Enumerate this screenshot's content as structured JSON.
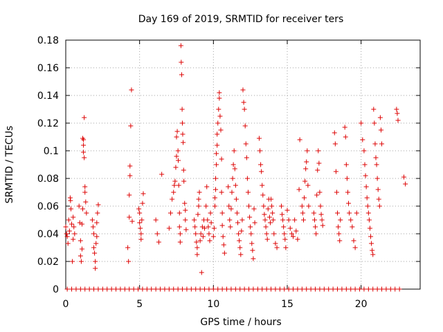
{
  "chart_data": {
    "type": "scatter",
    "title": "Day 169 of 2019, SRMTID for receiver ters",
    "xlabel": "GPS time / hours",
    "ylabel": "SRMTID / TECUs",
    "xlim": [
      0,
      24
    ],
    "ylim": [
      0,
      0.18
    ],
    "xticks": [
      0,
      5,
      10,
      15,
      20
    ],
    "xtick_labels": [
      "0",
      "5",
      "10",
      "15",
      "20"
    ],
    "yticks": [
      0,
      0.02,
      0.04,
      0.06,
      0.08,
      0.1,
      0.12,
      0.14,
      0.16,
      0.18
    ],
    "ytick_labels": [
      "0",
      "0.02",
      "0.04",
      "0.06",
      "0.08",
      "0.1",
      "0.12",
      "0.14",
      "0.16",
      "0.18"
    ],
    "grid": true,
    "marker": "+",
    "color": "#dd0000",
    "series": [
      {
        "name": "SRMTID",
        "points": [
          [
            0.0,
            0.045
          ],
          [
            0.05,
            0.04
          ],
          [
            0.1,
            0.038
          ],
          [
            0.15,
            0.033
          ],
          [
            0.2,
            0.05
          ],
          [
            0.25,
            0.042
          ],
          [
            0.3,
            0.066
          ],
          [
            0.32,
            0.064
          ],
          [
            0.35,
            0.058
          ],
          [
            0.4,
            0.047
          ],
          [
            0.45,
            0.02
          ],
          [
            0.5,
            0.052
          ],
          [
            0.5,
            0.036
          ],
          [
            0.55,
            0.045
          ],
          [
            0.6,
            0.04
          ],
          [
            0.9,
            0.06
          ],
          [
            0.95,
            0.048
          ],
          [
            1.0,
            0.035
          ],
          [
            1.0,
            0.024
          ],
          [
            1.05,
            0.02
          ],
          [
            1.1,
            0.029
          ],
          [
            1.1,
            0.047
          ],
          [
            1.15,
            0.058
          ],
          [
            1.15,
            0.109
          ],
          [
            1.2,
            0.108
          ],
          [
            1.2,
            0.104
          ],
          [
            1.2,
            0.099
          ],
          [
            1.25,
            0.095
          ],
          [
            1.25,
            0.124
          ],
          [
            1.3,
            0.074
          ],
          [
            1.3,
            0.07
          ],
          [
            1.35,
            0.063
          ],
          [
            1.4,
            0.055
          ],
          [
            1.8,
            0.05
          ],
          [
            1.85,
            0.045
          ],
          [
            1.9,
            0.04
          ],
          [
            1.9,
            0.03
          ],
          [
            1.95,
            0.026
          ],
          [
            2.0,
            0.02
          ],
          [
            2.0,
            0.015
          ],
          [
            2.05,
            0.033
          ],
          [
            2.1,
            0.038
          ],
          [
            2.1,
            0.048
          ],
          [
            2.15,
            0.055
          ],
          [
            2.2,
            0.061
          ],
          [
            4.2,
            0.03
          ],
          [
            4.25,
            0.02
          ],
          [
            4.3,
            0.052
          ],
          [
            4.3,
            0.068
          ],
          [
            4.35,
            0.082
          ],
          [
            4.35,
            0.089
          ],
          [
            4.4,
            0.118
          ],
          [
            4.45,
            0.144
          ],
          [
            4.5,
            0.049
          ],
          [
            4.95,
            0.058
          ],
          [
            5.0,
            0.055
          ],
          [
            5.0,
            0.048
          ],
          [
            5.05,
            0.044
          ],
          [
            5.1,
            0.04
          ],
          [
            5.1,
            0.036
          ],
          [
            5.15,
            0.05
          ],
          [
            5.2,
            0.062
          ],
          [
            5.25,
            0.069
          ],
          [
            6.1,
            0.05
          ],
          [
            6.2,
            0.04
          ],
          [
            6.3,
            0.034
          ],
          [
            6.5,
            0.083
          ],
          [
            7.0,
            0.044
          ],
          [
            7.1,
            0.055
          ],
          [
            7.2,
            0.065
          ],
          [
            7.3,
            0.07
          ],
          [
            7.35,
            0.075
          ],
          [
            7.4,
            0.078
          ],
          [
            7.45,
            0.088
          ],
          [
            7.5,
            0.11
          ],
          [
            7.5,
            0.096
          ],
          [
            7.55,
            0.114
          ],
          [
            7.6,
            0.1
          ],
          [
            7.62,
            0.093
          ],
          [
            7.65,
            0.075
          ],
          [
            7.7,
            0.055
          ],
          [
            7.7,
            0.045
          ],
          [
            7.75,
            0.04
          ],
          [
            7.75,
            0.034
          ],
          [
            7.8,
            0.176
          ],
          [
            7.82,
            0.164
          ],
          [
            7.85,
            0.155
          ],
          [
            7.88,
            0.13
          ],
          [
            7.9,
            0.12
          ],
          [
            7.92,
            0.112
          ],
          [
            7.95,
            0.106
          ],
          [
            7.98,
            0.086
          ],
          [
            8.0,
            0.078
          ],
          [
            8.05,
            0.062
          ],
          [
            8.1,
            0.057
          ],
          [
            8.1,
            0.05
          ],
          [
            8.15,
            0.043
          ],
          [
            8.7,
            0.05
          ],
          [
            8.75,
            0.045
          ],
          [
            8.8,
            0.04
          ],
          [
            8.85,
            0.034
          ],
          [
            8.9,
            0.03
          ],
          [
            8.9,
            0.025
          ],
          [
            8.95,
            0.054
          ],
          [
            9.0,
            0.06
          ],
          [
            9.0,
            0.065
          ],
          [
            9.05,
            0.07
          ],
          [
            9.1,
            0.035
          ],
          [
            9.15,
            0.04
          ],
          [
            9.2,
            0.012
          ],
          [
            9.25,
            0.045
          ],
          [
            9.3,
            0.038
          ],
          [
            9.35,
            0.05
          ],
          [
            9.4,
            0.044
          ],
          [
            9.5,
            0.06
          ],
          [
            9.55,
            0.074
          ],
          [
            9.6,
            0.05
          ],
          [
            9.65,
            0.045
          ],
          [
            9.7,
            0.04
          ],
          [
            9.75,
            0.035
          ],
          [
            9.8,
            0.055
          ],
          [
            9.85,
            0.048
          ],
          [
            10.0,
            0.038
          ],
          [
            10.05,
            0.044
          ],
          [
            10.1,
            0.06
          ],
          [
            10.1,
            0.066
          ],
          [
            10.15,
            0.072
          ],
          [
            10.15,
            0.08
          ],
          [
            10.2,
            0.09
          ],
          [
            10.2,
            0.098
          ],
          [
            10.25,
            0.104
          ],
          [
            10.25,
            0.112
          ],
          [
            10.3,
            0.12
          ],
          [
            10.35,
            0.13
          ],
          [
            10.4,
            0.142
          ],
          [
            10.4,
            0.138
          ],
          [
            10.45,
            0.125
          ],
          [
            10.5,
            0.115
          ],
          [
            10.55,
            0.094
          ],
          [
            10.55,
            0.07
          ],
          [
            10.6,
            0.055
          ],
          [
            10.6,
            0.046
          ],
          [
            10.65,
            0.038
          ],
          [
            10.7,
            0.032
          ],
          [
            10.75,
            0.026
          ],
          [
            11.0,
            0.074
          ],
          [
            11.05,
            0.06
          ],
          [
            11.1,
            0.05
          ],
          [
            11.15,
            0.045
          ],
          [
            11.2,
            0.058
          ],
          [
            11.25,
            0.07
          ],
          [
            11.3,
            0.08
          ],
          [
            11.35,
            0.09
          ],
          [
            11.4,
            0.1
          ],
          [
            11.45,
            0.087
          ],
          [
            11.5,
            0.075
          ],
          [
            11.55,
            0.065
          ],
          [
            11.6,
            0.055
          ],
          [
            11.65,
            0.048
          ],
          [
            11.7,
            0.04
          ],
          [
            11.75,
            0.035
          ],
          [
            11.8,
            0.03
          ],
          [
            11.85,
            0.025
          ],
          [
            11.9,
            0.042
          ],
          [
            11.95,
            0.05
          ],
          [
            12.0,
            0.144
          ],
          [
            12.05,
            0.135
          ],
          [
            12.1,
            0.13
          ],
          [
            12.15,
            0.118
          ],
          [
            12.2,
            0.105
          ],
          [
            12.25,
            0.095
          ],
          [
            12.3,
            0.08
          ],
          [
            12.35,
            0.07
          ],
          [
            12.4,
            0.06
          ],
          [
            12.45,
            0.052
          ],
          [
            12.5,
            0.045
          ],
          [
            12.55,
            0.04
          ],
          [
            12.6,
            0.033
          ],
          [
            12.65,
            0.028
          ],
          [
            12.7,
            0.022
          ],
          [
            12.75,
            0.058
          ],
          [
            12.8,
            0.048
          ],
          [
            13.1,
            0.109
          ],
          [
            13.15,
            0.1
          ],
          [
            13.2,
            0.09
          ],
          [
            13.25,
            0.085
          ],
          [
            13.3,
            0.075
          ],
          [
            13.35,
            0.068
          ],
          [
            13.4,
            0.06
          ],
          [
            13.45,
            0.054
          ],
          [
            13.5,
            0.05
          ],
          [
            13.55,
            0.045
          ],
          [
            13.6,
            0.04
          ],
          [
            13.65,
            0.036
          ],
          [
            13.7,
            0.058
          ],
          [
            13.75,
            0.065
          ],
          [
            13.8,
            0.052
          ],
          [
            13.85,
            0.048
          ],
          [
            13.9,
            0.065
          ],
          [
            13.95,
            0.06
          ],
          [
            14.0,
            0.055
          ],
          [
            14.05,
            0.05
          ],
          [
            14.1,
            0.04
          ],
          [
            14.2,
            0.033
          ],
          [
            14.3,
            0.03
          ],
          [
            14.6,
            0.06
          ],
          [
            14.65,
            0.054
          ],
          [
            14.7,
            0.05
          ],
          [
            14.75,
            0.045
          ],
          [
            14.8,
            0.04
          ],
          [
            14.85,
            0.036
          ],
          [
            14.9,
            0.03
          ],
          [
            15.0,
            0.057
          ],
          [
            15.1,
            0.05
          ],
          [
            15.2,
            0.044
          ],
          [
            15.3,
            0.04
          ],
          [
            15.4,
            0.038
          ],
          [
            15.5,
            0.05
          ],
          [
            15.6,
            0.042
          ],
          [
            15.7,
            0.036
          ],
          [
            15.8,
            0.072
          ],
          [
            15.85,
            0.108
          ],
          [
            16.0,
            0.06
          ],
          [
            16.05,
            0.055
          ],
          [
            16.1,
            0.05
          ],
          [
            16.15,
            0.066
          ],
          [
            16.2,
            0.078
          ],
          [
            16.25,
            0.087
          ],
          [
            16.3,
            0.092
          ],
          [
            16.35,
            0.1
          ],
          [
            16.4,
            0.075
          ],
          [
            16.45,
            0.06
          ],
          [
            16.8,
            0.055
          ],
          [
            16.85,
            0.05
          ],
          [
            16.9,
            0.045
          ],
          [
            16.95,
            0.04
          ],
          [
            17.0,
            0.068
          ],
          [
            17.05,
            0.086
          ],
          [
            17.1,
            0.1
          ],
          [
            17.15,
            0.091
          ],
          [
            17.2,
            0.07
          ],
          [
            17.25,
            0.06
          ],
          [
            17.3,
            0.054
          ],
          [
            17.35,
            0.05
          ],
          [
            17.4,
            0.046
          ],
          [
            18.2,
            0.113
          ],
          [
            18.25,
            0.105
          ],
          [
            18.3,
            0.085
          ],
          [
            18.35,
            0.07
          ],
          [
            18.4,
            0.055
          ],
          [
            18.45,
            0.045
          ],
          [
            18.5,
            0.04
          ],
          [
            18.55,
            0.035
          ],
          [
            18.6,
            0.05
          ],
          [
            18.9,
            0.117
          ],
          [
            18.95,
            0.11
          ],
          [
            19.0,
            0.09
          ],
          [
            19.05,
            0.08
          ],
          [
            19.1,
            0.07
          ],
          [
            19.15,
            0.062
          ],
          [
            19.2,
            0.055
          ],
          [
            19.3,
            0.05
          ],
          [
            19.4,
            0.045
          ],
          [
            19.5,
            0.035
          ],
          [
            19.6,
            0.03
          ],
          [
            19.7,
            0.055
          ],
          [
            20.0,
            0.12
          ],
          [
            20.1,
            0.108
          ],
          [
            20.2,
            0.1
          ],
          [
            20.25,
            0.09
          ],
          [
            20.3,
            0.082
          ],
          [
            20.35,
            0.074
          ],
          [
            20.4,
            0.066
          ],
          [
            20.45,
            0.06
          ],
          [
            20.5,
            0.055
          ],
          [
            20.55,
            0.05
          ],
          [
            20.6,
            0.044
          ],
          [
            20.65,
            0.038
          ],
          [
            20.7,
            0.033
          ],
          [
            20.75,
            0.028
          ],
          [
            20.8,
            0.025
          ],
          [
            20.85,
            0.13
          ],
          [
            20.9,
            0.12
          ],
          [
            20.95,
            0.105
          ],
          [
            21.0,
            0.095
          ],
          [
            21.05,
            0.09
          ],
          [
            21.1,
            0.08
          ],
          [
            21.15,
            0.072
          ],
          [
            21.2,
            0.065
          ],
          [
            21.25,
            0.06
          ],
          [
            21.3,
            0.124
          ],
          [
            21.35,
            0.115
          ],
          [
            21.4,
            0.105
          ],
          [
            22.4,
            0.13
          ],
          [
            22.45,
            0.127
          ],
          [
            22.5,
            0.122
          ],
          [
            22.9,
            0.081
          ],
          [
            23.0,
            0.076
          ]
        ]
      }
    ],
    "zero_band_hours": [
      0.1,
      0.4,
      0.7,
      1.0,
      1.3,
      1.6,
      1.9,
      2.2,
      2.5,
      2.8,
      3.1,
      3.4,
      3.7,
      4.0,
      4.3,
      4.6,
      4.9,
      5.2,
      5.5,
      5.8,
      6.1,
      6.4,
      6.7,
      7.0,
      7.3,
      7.6,
      7.9,
      8.2,
      8.5,
      8.8,
      9.1,
      9.4,
      9.7,
      10.0,
      10.3,
      10.6,
      10.9,
      11.2,
      11.5,
      11.8,
      12.1,
      12.4,
      12.7,
      13.0,
      13.3,
      13.6,
      13.9,
      14.2,
      14.5,
      14.8,
      15.1,
      15.4,
      15.7,
      16.0,
      16.3,
      16.6,
      16.9,
      17.2,
      17.5,
      17.8,
      18.1,
      18.4,
      18.7,
      19.0,
      19.3,
      19.6,
      19.9,
      20.2,
      20.5,
      20.8,
      21.1,
      21.4,
      21.7,
      22.0,
      22.3,
      22.6
    ]
  }
}
